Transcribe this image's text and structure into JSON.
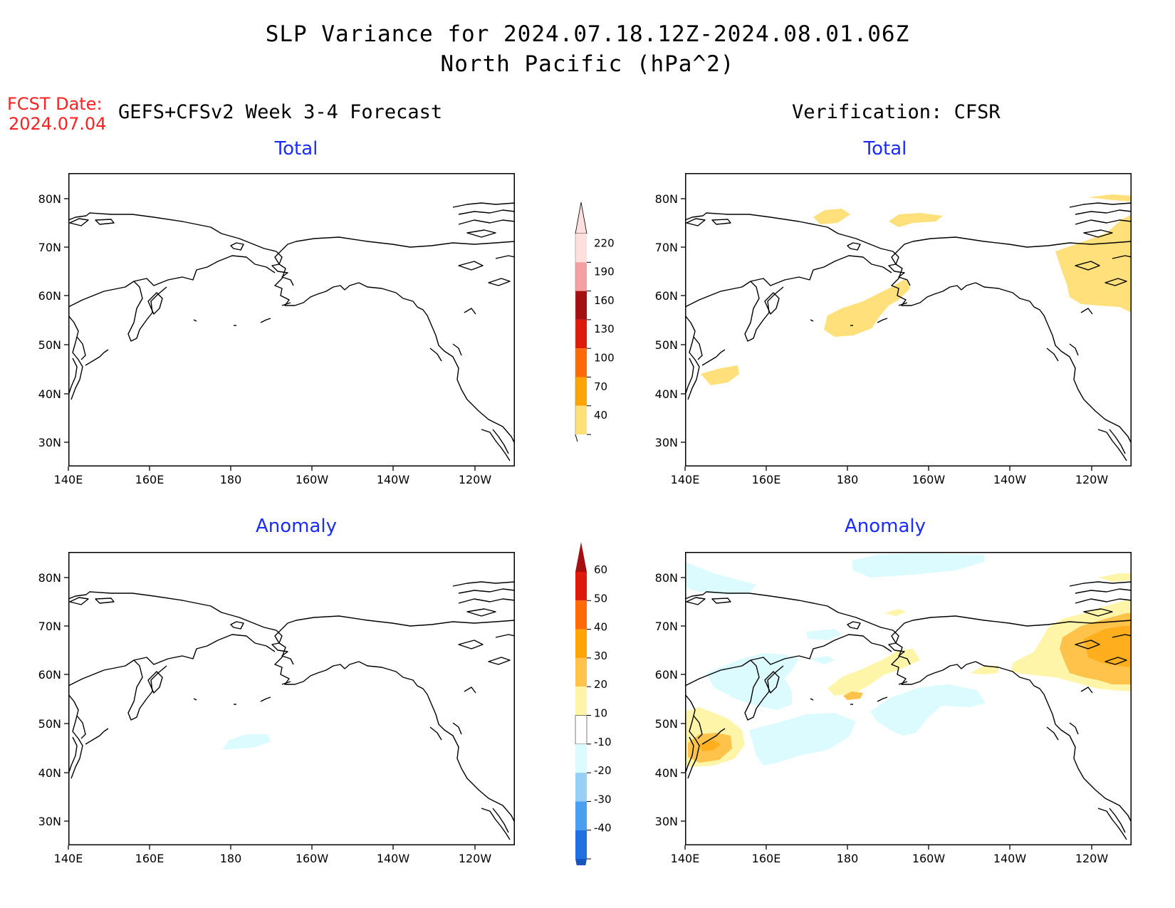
{
  "header": {
    "title_line1": "SLP Variance for 2024.07.18.12Z-2024.08.01.06Z",
    "title_line2": "North Pacific (hPa^2)",
    "fcst_label": "FCST Date:",
    "fcst_date": "2024.07.04",
    "left_subtitle": "GEFS+CFSv2 Week 3-4 Forecast",
    "right_subtitle": "Verification: CFSR"
  },
  "panels": {
    "top_left_title": "Total",
    "top_right_title": "Total",
    "bottom_left_title": "Anomaly",
    "bottom_right_title": "Anomaly"
  },
  "axes": {
    "lat_labels": [
      "80N",
      "70N",
      "60N",
      "50N",
      "40N",
      "30N"
    ],
    "lon_labels": [
      "140E",
      "160E",
      "180",
      "160W",
      "140W",
      "120W"
    ]
  },
  "colorbars": {
    "total": {
      "levels": [
        "220",
        "190",
        "160",
        "130",
        "100",
        "70",
        "40"
      ],
      "colors": [
        "#fde0dd",
        "#f4a0a0",
        "#a50f0f",
        "#e01a0a",
        "#ff6a08",
        "#ffa405",
        "#ffe07a"
      ]
    },
    "anomaly": {
      "levels": [
        "60",
        "50",
        "40",
        "30",
        "20",
        "10",
        "-10",
        "-20",
        "-30",
        "-40"
      ],
      "colors": [
        "#a50f0f",
        "#e01a0a",
        "#ff6a08",
        "#ffa405",
        "#ffc24a",
        "#fff5a8",
        "#ffffff",
        "#dcfbff",
        "#98cff5",
        "#4aa0f0",
        "#2070e0",
        "#1455c0"
      ]
    }
  }
}
